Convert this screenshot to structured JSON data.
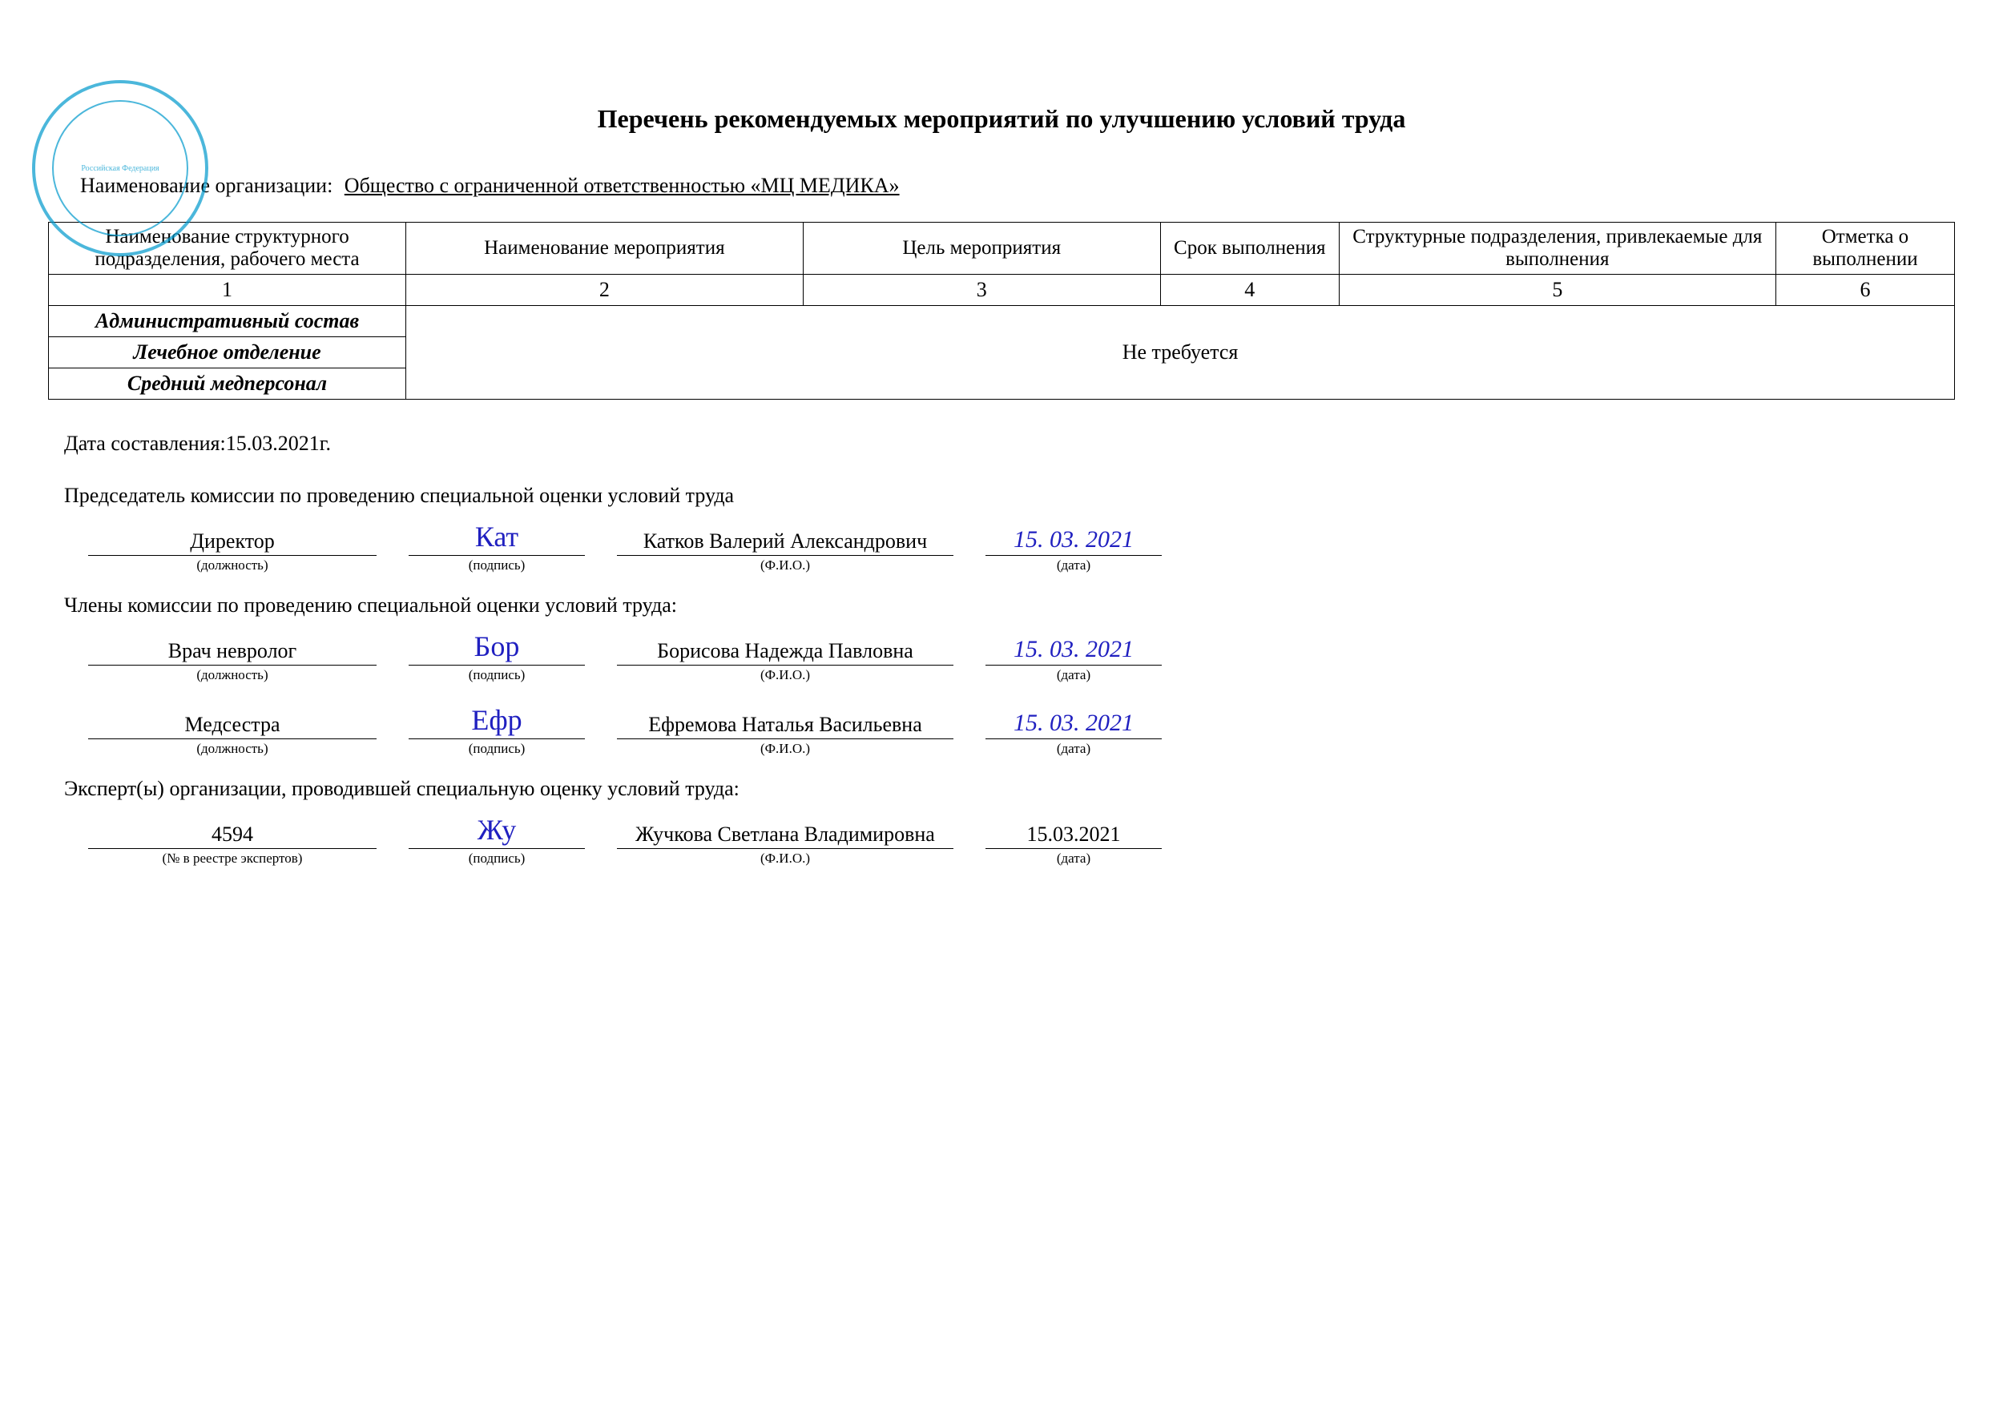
{
  "title": "Перечень рекомендуемых мероприятий по улучшению условий труда",
  "org": {
    "label": "Наименование организации:",
    "value": "Общество с ограниченной ответственностью «МЦ МЕДИКА»"
  },
  "table": {
    "headers": [
      "Наименование структурного подразделения, рабочего места",
      "Наименование мероприятия",
      "Цель мероприятия",
      "Срок выполнения",
      "Структурные подразделения, привлекаемые для выполнения",
      "Отметка о выполнении"
    ],
    "nums": [
      "1",
      "2",
      "3",
      "4",
      "5",
      "6"
    ],
    "rows": [
      "Административный состав",
      "Лечебное отделение",
      "Средний медперсонал"
    ],
    "merged_text": "Не требуется"
  },
  "date_line": {
    "label": "Дата составления:",
    "value": "15.03.2021г."
  },
  "chairman": {
    "title": "Председатель комиссии по проведению специальной оценки условий труда",
    "position": "Директор",
    "fio": "Катков Валерий Александрович",
    "date": "15. 03. 2021"
  },
  "members": {
    "title": "Члены комиссии по проведению специальной оценки условий труда:",
    "list": [
      {
        "position": "Врач невролог",
        "fio": "Борисова Надежда Павловна",
        "date": "15. 03.  2021"
      },
      {
        "position": "Медсестра",
        "fio": "Ефремова Наталья Васильевна",
        "date": "15. 03. 2021"
      }
    ]
  },
  "experts": {
    "title": "Эксперт(ы) организации, проводившей специальную оценку условий труда:",
    "list": [
      {
        "id": "4594",
        "fio": "Жучкова Светлана Владимировна",
        "date": "15.03.2021"
      }
    ]
  },
  "sublabels": {
    "position": "(должность)",
    "sign": "(подпись)",
    "fio": "(Ф.И.О.)",
    "date": "(дата)",
    "expert_id": "(№ в реестре экспертов)"
  },
  "stamp_text": "Российская Федерация"
}
